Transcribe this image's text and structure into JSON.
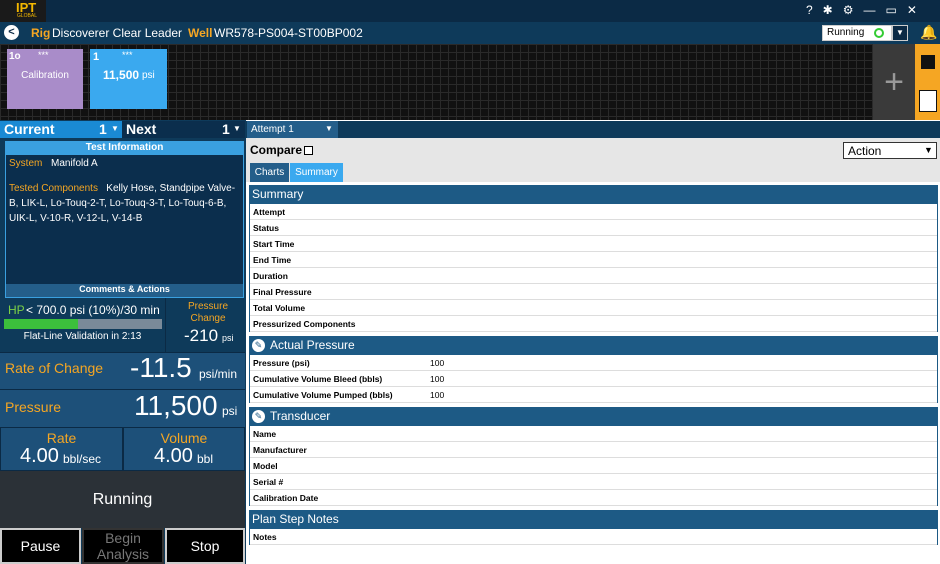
{
  "header": {
    "logo": "IPT",
    "logo_sub": "GLOBAL",
    "rig_label": "Rig",
    "rig": "Discoverer Clear Leader",
    "well_label": "Well",
    "well": "WR578-PS004-ST00BP002",
    "status": "Running"
  },
  "tiles": [
    {
      "id": "1o",
      "dots": "***",
      "label": "Calibration"
    },
    {
      "id": "1",
      "dots": "***",
      "value": "11,500",
      "unit": "psi"
    }
  ],
  "left": {
    "current": "Current",
    "current_num": "1",
    "next": "Next",
    "next_num": "1",
    "test_info": "Test Information",
    "system_label": "System",
    "system": "Manifold A",
    "components_label": "Tested Components",
    "components": "Kelly Hose, Standpipe Valve-B, LIK-L, Lo-Touq-2-T, Lo-Touq-3-T, Lo-Touq-6-B, UIK-L, V-10-R, V-12-L, V-14-B",
    "comments": "Comments & Actions",
    "hp": "HP",
    "criteria": "< 700.0 psi (10%)/30 min",
    "flatline": "Flat-Line Validation in 2:13",
    "pc_label": "Pressure Change",
    "pc_value": "-210",
    "pc_unit": "psi",
    "roc_label": "Rate of Change",
    "roc_value": "-11.5",
    "roc_unit": "psi/min",
    "p_label": "Pressure",
    "p_value": "11,500",
    "p_unit": "psi",
    "rate_label": "Rate",
    "rate_value": "4.00",
    "rate_unit": "bbl/sec",
    "vol_label": "Volume",
    "vol_value": "4.00",
    "vol_unit": "bbl",
    "state": "Running",
    "buttons": [
      "Pause",
      "Begin Analysis",
      "Stop"
    ]
  },
  "right": {
    "attempt": "Attempt 1",
    "compare": "Compare",
    "action": "Action",
    "tabs": [
      "Charts",
      "Summary"
    ],
    "sections": [
      {
        "title": "Summary",
        "rows": [
          {
            "label": "Attempt"
          },
          {
            "label": "Status"
          },
          {
            "label": "Start Time"
          },
          {
            "label": "End Time"
          },
          {
            "label": "Duration"
          },
          {
            "label": "Final Pressure"
          },
          {
            "label": "Total Volume"
          },
          {
            "label": "Pressurized Components"
          }
        ]
      },
      {
        "title": "Actual Pressure",
        "editable": true,
        "rows": [
          {
            "label": "Pressure (psi)",
            "value": "100"
          },
          {
            "label": "Cumulative Volume Bleed (bbls)",
            "value": "100"
          },
          {
            "label": "Cumulative Volume Pumped (bbls)",
            "value": "100"
          }
        ]
      },
      {
        "title": "Transducer",
        "editable": true,
        "rows": [
          {
            "label": "Name"
          },
          {
            "label": "Manufacturer"
          },
          {
            "label": "Model"
          },
          {
            "label": "Serial #"
          },
          {
            "label": "Calibration Date"
          }
        ]
      },
      {
        "title": "Plan Step Notes",
        "rows": [
          {
            "label": "Notes"
          }
        ]
      }
    ]
  }
}
